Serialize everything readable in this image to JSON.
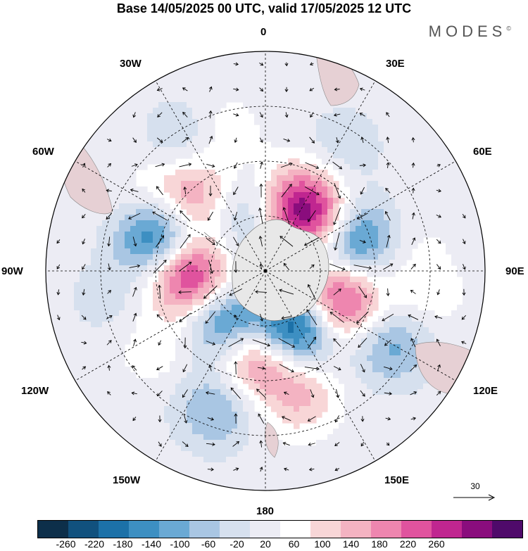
{
  "title": "Base 14/05/2025 00 UTC, valid 17/05/2025 12 UTC",
  "brand": "MODES",
  "brand_mark": "©",
  "longitude_labels": {
    "lon_0": "0",
    "lon_30e": "30E",
    "lon_60e": "60E",
    "lon_90e": "90E",
    "lon_120e": "120E",
    "lon_150e": "150E",
    "lon_180": "180",
    "lon_150w": "150W",
    "lon_120w": "120W",
    "lon_90w": "90W",
    "lon_60w": "60W",
    "lon_30w": "30W"
  },
  "reference_vector": {
    "value": "30"
  },
  "colorbar": {
    "colors": [
      "#0d2f4a",
      "#11517e",
      "#1c71a8",
      "#3d8fc2",
      "#6aa9d4",
      "#a9c6e3",
      "#d6e0ee",
      "#ececf4",
      "#ffffff",
      "#f8d6d7",
      "#f4b3c2",
      "#ee86af",
      "#e0539e",
      "#c02690",
      "#8a0d7d",
      "#4f0a6a"
    ],
    "tick_labels": [
      "-260",
      "-220",
      "-180",
      "-140",
      "-100",
      "-60",
      "-20",
      "20",
      "60",
      "100",
      "140",
      "180",
      "220",
      "260"
    ]
  },
  "anomaly_field": {
    "note_units": "geopotential height anomaly (m)",
    "centers": [
      {
        "lon": -45,
        "colat": 29,
        "value": 150
      },
      {
        "lon": 20,
        "colat": 22,
        "value": 110
      },
      {
        "lon": -5,
        "colat": 16,
        "value": -140
      },
      {
        "lon": 22,
        "colat": 14,
        "value": 190
      },
      {
        "lon": 45,
        "colat": 20,
        "value": 190
      },
      {
        "lon": 70,
        "colat": 26,
        "value": -200
      },
      {
        "lon": 95,
        "colat": 6,
        "value": 150
      },
      {
        "lon": 112,
        "colat": 22,
        "value": 240
      },
      {
        "lon": 152,
        "colat": 17,
        "value": -280
      },
      {
        "lon": -172,
        "colat": 23,
        "value": 200
      },
      {
        "lon": -145,
        "colat": 18,
        "value": -200
      },
      {
        "lon": -93,
        "colat": 21,
        "value": 260
      },
      {
        "lon": -72,
        "colat": 31,
        "value": -230
      },
      {
        "lon": 10,
        "colat": 6,
        "value": -60
      },
      {
        "lon": 60,
        "colat": 9,
        "value": -150
      },
      {
        "lon": -160,
        "colat": 40,
        "value": -110
      },
      {
        "lon": 165,
        "colat": 35,
        "value": 110
      },
      {
        "lon": -125,
        "colat": 36,
        "value": 50
      },
      {
        "lon": -20,
        "colat": 40,
        "value": 70
      },
      {
        "lon": 120,
        "colat": 40,
        "value": -120
      },
      {
        "lon": 100,
        "colat": 44,
        "value": 50
      },
      {
        "lon": -30,
        "colat": 42,
        "value": -90
      },
      {
        "lon": 32,
        "colat": 40,
        "value": -50
      },
      {
        "lon": -100,
        "colat": 44,
        "value": -40
      },
      {
        "lon": 80,
        "colat": 40,
        "value": 30
      },
      {
        "lon": -60,
        "colat": 38,
        "value": 40
      }
    ]
  }
}
